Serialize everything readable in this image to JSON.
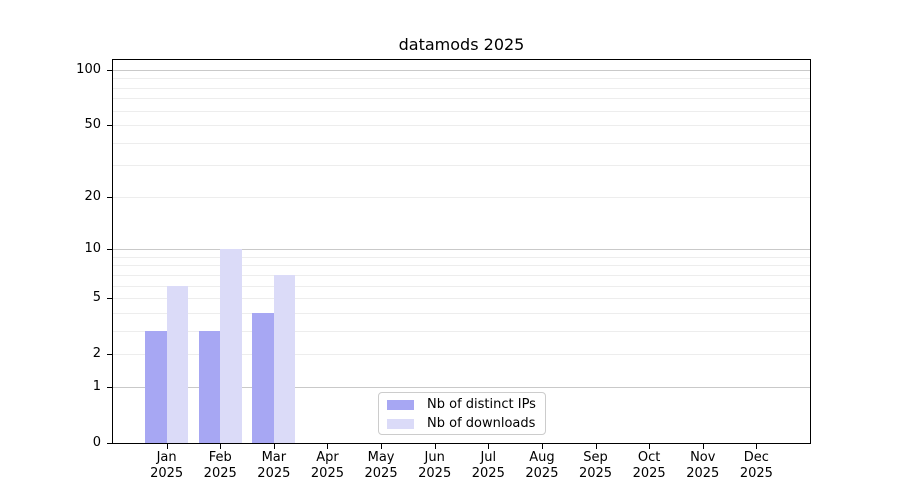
{
  "chart_data": {
    "type": "bar",
    "title": "datamods 2025",
    "categories": [
      "Jan",
      "Feb",
      "Mar",
      "Apr",
      "May",
      "Jun",
      "Jul",
      "Aug",
      "Sep",
      "Oct",
      "Nov",
      "Dec"
    ],
    "x_year": "2025",
    "series": [
      {
        "name": "Nb of distinct IPs",
        "color": "#a7a7f3",
        "values": [
          3,
          3,
          4,
          0,
          0,
          0,
          0,
          0,
          0,
          0,
          0,
          0
        ]
      },
      {
        "name": "Nb of downloads",
        "color": "#dbdbf8",
        "values": [
          6,
          10,
          7,
          0,
          0,
          0,
          0,
          0,
          0,
          0,
          0,
          0
        ]
      }
    ],
    "y_axis": {
      "scale": "log1p",
      "labeled_ticks": [
        0,
        1,
        2,
        5,
        10,
        20,
        50,
        100
      ],
      "major_gridlines": [
        1,
        10,
        100
      ],
      "minor_gridlines": [
        2,
        3,
        4,
        5,
        6,
        7,
        8,
        9,
        20,
        30,
        40,
        50,
        60,
        70,
        80,
        90
      ],
      "ylim": [
        0,
        113
      ]
    },
    "legend": {
      "position": "lower center",
      "entries": [
        "Nb of distinct IPs",
        "Nb of downloads"
      ]
    },
    "colors": {
      "spine": "#000000",
      "grid_major": "#c9c9c9",
      "grid_minor": "#ededed",
      "text": "#000000",
      "legend_border": "#cccccc",
      "background": "#ffffff"
    }
  }
}
